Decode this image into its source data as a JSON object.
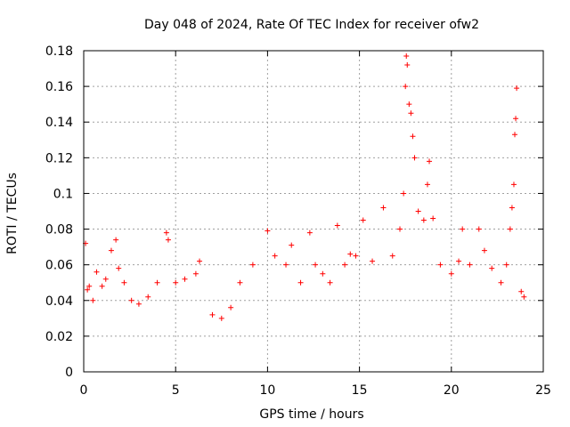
{
  "chart_data": {
    "type": "scatter",
    "title": "Day 048 of 2024, Rate Of TEC Index for receiver ofw2",
    "xlabel": "GPS time / hours",
    "ylabel": "ROTI / TECUs",
    "xlim": [
      0,
      25
    ],
    "ylim": [
      0,
      0.18
    ],
    "x_ticks": [
      "0",
      "5",
      "10",
      "15",
      "20",
      "25"
    ],
    "y_ticks": [
      "0",
      "0.02",
      "0.04",
      "0.06",
      "0.08",
      "0.1",
      "0.12",
      "0.14",
      "0.16",
      "0.18"
    ],
    "grid": true,
    "marker": "+",
    "series": [
      {
        "name": "ROTI",
        "color": "#ff0000",
        "points": [
          [
            0.1,
            0.072
          ],
          [
            0.2,
            0.046
          ],
          [
            0.3,
            0.048
          ],
          [
            0.5,
            0.04
          ],
          [
            0.7,
            0.056
          ],
          [
            1.0,
            0.048
          ],
          [
            1.2,
            0.052
          ],
          [
            1.5,
            0.068
          ],
          [
            1.75,
            0.074
          ],
          [
            1.9,
            0.058
          ],
          [
            2.2,
            0.05
          ],
          [
            2.6,
            0.04
          ],
          [
            3.0,
            0.038
          ],
          [
            3.5,
            0.042
          ],
          [
            4.0,
            0.05
          ],
          [
            4.5,
            0.078
          ],
          [
            4.6,
            0.074
          ],
          [
            5.0,
            0.05
          ],
          [
            5.5,
            0.052
          ],
          [
            6.1,
            0.055
          ],
          [
            6.3,
            0.062
          ],
          [
            7.0,
            0.032
          ],
          [
            7.5,
            0.03
          ],
          [
            8.0,
            0.036
          ],
          [
            8.5,
            0.05
          ],
          [
            9.2,
            0.06
          ],
          [
            10.0,
            0.079
          ],
          [
            10.4,
            0.065
          ],
          [
            11.0,
            0.06
          ],
          [
            11.3,
            0.071
          ],
          [
            11.8,
            0.05
          ],
          [
            12.3,
            0.078
          ],
          [
            12.6,
            0.06
          ],
          [
            13.0,
            0.055
          ],
          [
            13.4,
            0.05
          ],
          [
            13.8,
            0.082
          ],
          [
            14.2,
            0.06
          ],
          [
            14.5,
            0.066
          ],
          [
            14.8,
            0.065
          ],
          [
            15.2,
            0.085
          ],
          [
            15.7,
            0.062
          ],
          [
            16.3,
            0.092
          ],
          [
            16.8,
            0.065
          ],
          [
            17.2,
            0.08
          ],
          [
            17.4,
            0.1
          ],
          [
            17.5,
            0.16
          ],
          [
            17.55,
            0.177
          ],
          [
            17.6,
            0.172
          ],
          [
            17.7,
            0.15
          ],
          [
            17.8,
            0.145
          ],
          [
            17.9,
            0.132
          ],
          [
            18.0,
            0.12
          ],
          [
            18.2,
            0.09
          ],
          [
            18.5,
            0.085
          ],
          [
            18.7,
            0.105
          ],
          [
            18.8,
            0.118
          ],
          [
            19.0,
            0.086
          ],
          [
            19.4,
            0.06
          ],
          [
            20.0,
            0.055
          ],
          [
            20.4,
            0.062
          ],
          [
            20.6,
            0.08
          ],
          [
            21.0,
            0.06
          ],
          [
            21.5,
            0.08
          ],
          [
            21.8,
            0.068
          ],
          [
            22.2,
            0.058
          ],
          [
            22.7,
            0.05
          ],
          [
            23.0,
            0.06
          ],
          [
            23.2,
            0.08
          ],
          [
            23.3,
            0.092
          ],
          [
            23.4,
            0.105
          ],
          [
            23.45,
            0.133
          ],
          [
            23.5,
            0.142
          ],
          [
            23.55,
            0.159
          ],
          [
            23.8,
            0.045
          ],
          [
            23.95,
            0.042
          ]
        ]
      }
    ]
  }
}
